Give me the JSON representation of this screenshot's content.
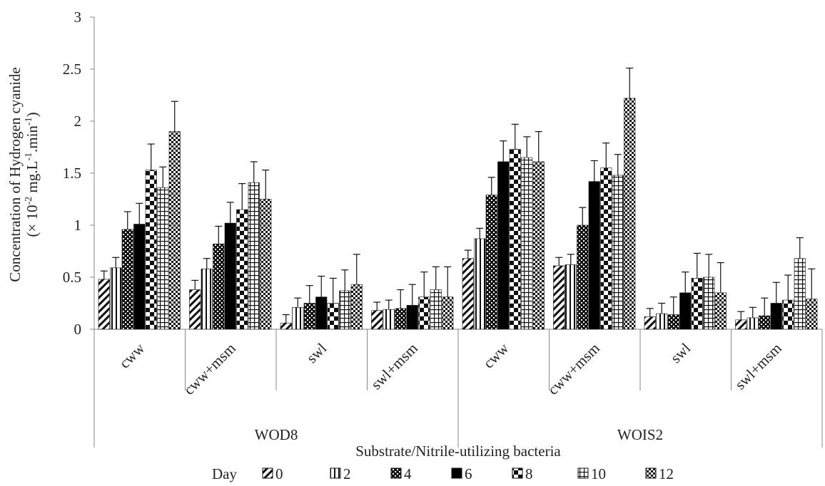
{
  "chart_data": {
    "type": "bar",
    "ylabel_line1": "Concentration of Hydrogen cyanide",
    "ylabel_line2": {
      "pre": "(× 10",
      "sup1": "-2",
      "mid1": " mg.L",
      "sup2": "-1",
      "mid2": ".min",
      "sup3": "-1",
      "post": ")"
    },
    "xlabel": "Substrate/Nitrile-utilizing bacteria",
    "ylim": [
      0,
      3
    ],
    "yticks": [
      "0",
      "0.5",
      "1",
      "1.5",
      "2",
      "2.5",
      "3"
    ],
    "groups": [
      {
        "name": "WOD8",
        "categories": [
          "cww",
          "cww+msm",
          "swl",
          "swl+msm"
        ]
      },
      {
        "name": "WOIS2",
        "categories": [
          "cww",
          "cww+msm",
          "swl",
          "swl+msm"
        ]
      }
    ],
    "legend_title": "Day",
    "legend_placement": "bottom",
    "series": [
      {
        "name": "0",
        "pattern": "diag",
        "values": [
          0.48,
          0.38,
          0.06,
          0.18,
          0.68,
          0.61,
          0.12,
          0.09
        ],
        "errors": [
          0.08,
          0.09,
          0.08,
          0.08,
          0.08,
          0.08,
          0.08,
          0.08
        ]
      },
      {
        "name": "2",
        "pattern": "vstripe",
        "values": [
          0.59,
          0.58,
          0.21,
          0.19,
          0.87,
          0.62,
          0.15,
          0.11
        ],
        "errors": [
          0.1,
          0.1,
          0.09,
          0.09,
          0.1,
          0.1,
          0.1,
          0.1
        ]
      },
      {
        "name": "4",
        "pattern": "dotgrid",
        "values": [
          0.96,
          0.82,
          0.25,
          0.2,
          1.29,
          1.0,
          0.14,
          0.13
        ],
        "errors": [
          0.17,
          0.17,
          0.17,
          0.18,
          0.17,
          0.17,
          0.17,
          0.17
        ]
      },
      {
        "name": "6",
        "pattern": "solid",
        "values": [
          1.01,
          1.02,
          0.31,
          0.23,
          1.61,
          1.42,
          0.35,
          0.25
        ],
        "errors": [
          0.2,
          0.2,
          0.2,
          0.2,
          0.2,
          0.2,
          0.2,
          0.2
        ]
      },
      {
        "name": "8",
        "pattern": "bigcheck",
        "values": [
          1.53,
          1.15,
          0.25,
          0.31,
          1.73,
          1.55,
          0.49,
          0.28
        ],
        "errors": [
          0.25,
          0.25,
          0.24,
          0.24,
          0.24,
          0.24,
          0.24,
          0.24
        ]
      },
      {
        "name": "10",
        "pattern": "grid",
        "values": [
          1.36,
          1.41,
          0.37,
          0.38,
          1.65,
          1.48,
          0.5,
          0.68
        ],
        "errors": [
          0.2,
          0.2,
          0.2,
          0.22,
          0.2,
          0.2,
          0.22,
          0.2
        ]
      },
      {
        "name": "12",
        "pattern": "smallcheck",
        "values": [
          1.9,
          1.25,
          0.43,
          0.31,
          1.61,
          2.22,
          0.35,
          0.29
        ],
        "errors": [
          0.29,
          0.28,
          0.29,
          0.29,
          0.29,
          0.29,
          0.29,
          0.29
        ]
      }
    ]
  }
}
